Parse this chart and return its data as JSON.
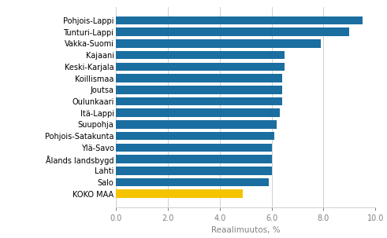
{
  "categories": [
    "KOKO MAA",
    "Salo",
    "Lahti",
    "Ålands landsbygd",
    "Ylä-Savo",
    "Pohjois-Satakunta",
    "Suupohja",
    "Itä-Lappi",
    "Oulunkaari",
    "Joutsa",
    "Koillismaa",
    "Keski-Karjala",
    "Kajaani",
    "Vakka-Suomi",
    "Tunturi-Lappi",
    "Pohjois-Lappi"
  ],
  "values": [
    4.9,
    5.9,
    6.0,
    6.0,
    6.0,
    6.1,
    6.2,
    6.3,
    6.4,
    6.4,
    6.4,
    6.5,
    6.5,
    7.9,
    9.0,
    9.5
  ],
  "bar_colors": [
    "#f5c400",
    "#1a6ea0",
    "#1a6ea0",
    "#1a6ea0",
    "#1a6ea0",
    "#1a6ea0",
    "#1a6ea0",
    "#1a6ea0",
    "#1a6ea0",
    "#1a6ea0",
    "#1a6ea0",
    "#1a6ea0",
    "#1a6ea0",
    "#1a6ea0",
    "#1a6ea0",
    "#1a6ea0"
  ],
  "xlabel": "Reaalimuutos, %",
  "xlim": [
    0,
    10.0
  ],
  "xticks": [
    0.0,
    2.0,
    4.0,
    6.0,
    8.0,
    10.0
  ],
  "xtick_labels": [
    "0.0",
    "2.0",
    "4.0",
    "6.0",
    "8.0",
    "10.0"
  ],
  "background_color": "#ffffff",
  "grid_color": "#d0d0d0",
  "bar_height": 0.72,
  "label_fontsize": 7.0,
  "tick_fontsize": 7.0,
  "xlabel_fontsize": 7.5,
  "xlabel_color": "#808080"
}
